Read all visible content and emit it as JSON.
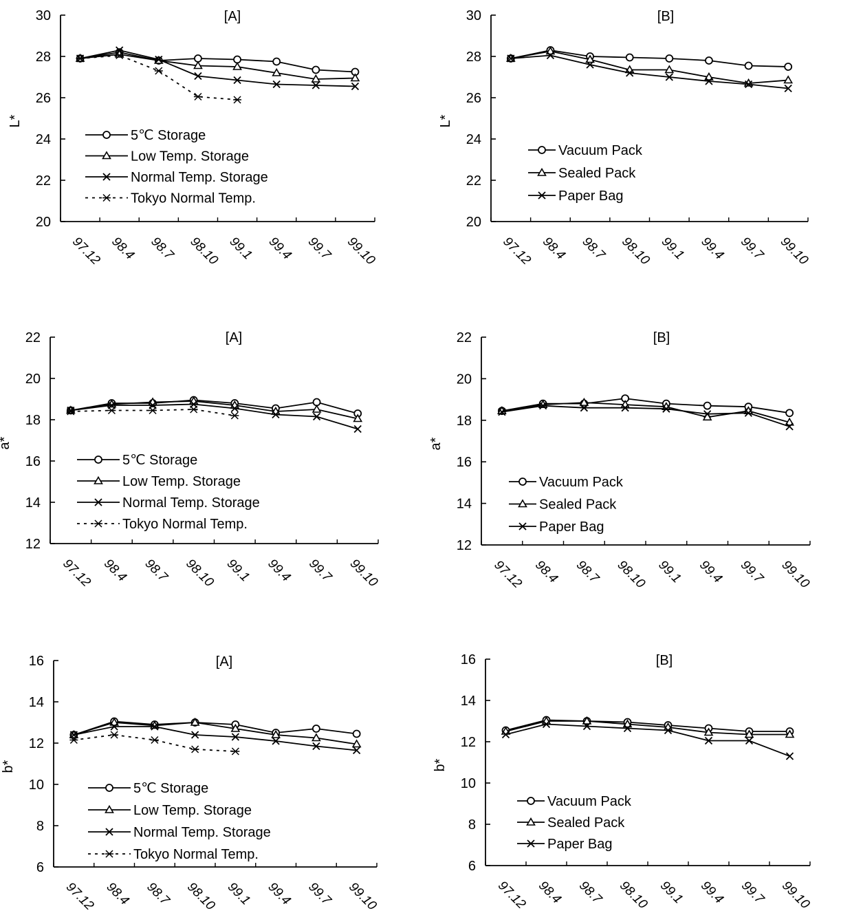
{
  "chart_data": [
    {
      "type": "line",
      "title": "[A]",
      "ylabel": "L*",
      "ylim": [
        20,
        30
      ],
      "yticks": [
        20,
        22,
        24,
        26,
        28,
        30
      ],
      "categories": [
        "97.12",
        "98.4",
        "98.7",
        "98.10",
        "99.1",
        "99.4",
        "99.7",
        "99.10"
      ],
      "legend": "bottom-left",
      "series": [
        {
          "name": "5℃ Storage",
          "marker": "circle",
          "dash": false,
          "values": [
            27.9,
            28.2,
            27.8,
            27.9,
            27.85,
            27.75,
            27.35,
            27.25
          ]
        },
        {
          "name": "Low Temp. Storage",
          "marker": "triangle",
          "dash": false,
          "values": [
            27.9,
            28.1,
            27.8,
            27.55,
            27.5,
            27.2,
            26.9,
            26.95
          ]
        },
        {
          "name": "Normal Temp. Storage",
          "marker": "x",
          "dash": false,
          "values": [
            27.9,
            28.3,
            27.85,
            27.05,
            26.85,
            26.65,
            26.6,
            26.55
          ]
        },
        {
          "name": "Tokyo Normal Temp.",
          "marker": "star",
          "dash": true,
          "values": [
            27.9,
            28.05,
            27.3,
            26.05,
            25.9,
            null,
            null,
            null
          ]
        }
      ]
    },
    {
      "type": "line",
      "title": "[B]",
      "ylabel": "L*",
      "ylim": [
        20,
        30
      ],
      "yticks": [
        20,
        22,
        24,
        26,
        28,
        30
      ],
      "categories": [
        "97.12",
        "98.4",
        "98.7",
        "98.10",
        "99.1",
        "99.4",
        "99.7",
        "99.10"
      ],
      "legend": "bottom-left",
      "series": [
        {
          "name": "Vacuum Pack",
          "marker": "circle",
          "dash": false,
          "values": [
            27.9,
            28.3,
            28.0,
            27.95,
            27.9,
            27.8,
            27.55,
            27.5
          ]
        },
        {
          "name": "Sealed Pack",
          "marker": "triangle",
          "dash": false,
          "values": [
            27.9,
            28.25,
            27.85,
            27.35,
            27.35,
            27.0,
            26.7,
            26.85
          ]
        },
        {
          "name": "Paper Bag",
          "marker": "x",
          "dash": false,
          "values": [
            27.9,
            28.05,
            27.6,
            27.2,
            27.0,
            26.8,
            26.65,
            26.45
          ]
        }
      ]
    },
    {
      "type": "line",
      "title": "[A]",
      "ylabel": "a*",
      "ylim": [
        12,
        22
      ],
      "yticks": [
        12,
        14,
        16,
        18,
        20,
        22
      ],
      "categories": [
        "97.12",
        "98.4",
        "98.7",
        "98.10",
        "99.1",
        "99.4",
        "99.7",
        "99.10"
      ],
      "legend": "bottom-left",
      "series": [
        {
          "name": "5℃ Storage",
          "marker": "circle",
          "dash": false,
          "values": [
            18.45,
            18.8,
            18.8,
            18.95,
            18.8,
            18.55,
            18.85,
            18.3
          ]
        },
        {
          "name": "Low Temp. Storage",
          "marker": "triangle",
          "dash": false,
          "values": [
            18.45,
            18.75,
            18.85,
            18.9,
            18.7,
            18.4,
            18.5,
            18.05
          ]
        },
        {
          "name": "Normal Temp. Storage",
          "marker": "x",
          "dash": false,
          "values": [
            18.45,
            18.7,
            18.7,
            18.75,
            18.55,
            18.25,
            18.15,
            17.55
          ]
        },
        {
          "name": "Tokyo Normal Temp.",
          "marker": "star",
          "dash": true,
          "values": [
            18.4,
            18.45,
            18.45,
            18.5,
            18.2,
            null,
            null,
            null
          ]
        }
      ]
    },
    {
      "type": "line",
      "title": "[B]",
      "ylabel": "a*",
      "ylim": [
        12,
        22
      ],
      "yticks": [
        12,
        14,
        16,
        18,
        20,
        22
      ],
      "categories": [
        "97.12",
        "98.4",
        "98.7",
        "98.10",
        "99.1",
        "99.4",
        "99.7",
        "99.10"
      ],
      "legend": "bottom-left",
      "series": [
        {
          "name": "Vacuum Pack",
          "marker": "circle",
          "dash": false,
          "values": [
            18.45,
            18.8,
            18.8,
            19.05,
            18.8,
            18.7,
            18.65,
            18.35
          ]
        },
        {
          "name": "Sealed Pack",
          "marker": "triangle",
          "dash": false,
          "values": [
            18.45,
            18.75,
            18.85,
            18.75,
            18.65,
            18.15,
            18.45,
            17.9
          ]
        },
        {
          "name": "Paper Bag",
          "marker": "x",
          "dash": false,
          "values": [
            18.4,
            18.7,
            18.6,
            18.6,
            18.55,
            18.3,
            18.35,
            17.7
          ]
        }
      ]
    },
    {
      "type": "line",
      "title": "[A]",
      "ylabel": "b*",
      "ylim": [
        6,
        16
      ],
      "yticks": [
        6,
        8,
        10,
        12,
        14,
        16
      ],
      "categories": [
        "97.12",
        "98.4",
        "98.7",
        "98.10",
        "99.1",
        "99.4",
        "99.7",
        "99.10"
      ],
      "legend": "bottom-left",
      "series": [
        {
          "name": "5℃ Storage",
          "marker": "circle",
          "dash": false,
          "values": [
            12.4,
            13.05,
            12.9,
            13.0,
            12.9,
            12.5,
            12.7,
            12.45
          ]
        },
        {
          "name": "Low Temp. Storage",
          "marker": "triangle",
          "dash": false,
          "values": [
            12.4,
            13.0,
            12.85,
            13.0,
            12.7,
            12.4,
            12.25,
            11.95
          ]
        },
        {
          "name": "Normal Temp. Storage",
          "marker": "x",
          "dash": false,
          "values": [
            12.4,
            12.8,
            12.8,
            12.4,
            12.3,
            12.1,
            11.85,
            11.65
          ]
        },
        {
          "name": "Tokyo Normal Temp.",
          "marker": "star",
          "dash": true,
          "values": [
            12.15,
            12.4,
            12.15,
            11.7,
            11.6,
            null,
            null,
            null
          ]
        }
      ]
    },
    {
      "type": "line",
      "title": "[B]",
      "ylabel": "b*",
      "ylim": [
        6,
        16
      ],
      "yticks": [
        6,
        8,
        10,
        12,
        14,
        16
      ],
      "categories": [
        "97.12",
        "98.4",
        "98.7",
        "98.10",
        "99.1",
        "99.4",
        "99.7",
        "99.10"
      ],
      "legend": "bottom-left",
      "series": [
        {
          "name": "Vacuum Pack",
          "marker": "circle",
          "dash": false,
          "values": [
            12.55,
            13.05,
            13.0,
            12.95,
            12.8,
            12.65,
            12.5,
            12.5
          ]
        },
        {
          "name": "Sealed Pack",
          "marker": "triangle",
          "dash": false,
          "values": [
            12.5,
            13.0,
            13.0,
            12.85,
            12.7,
            12.45,
            12.35,
            12.35
          ]
        },
        {
          "name": "Paper Bag",
          "marker": "x",
          "dash": false,
          "values": [
            12.35,
            12.85,
            12.75,
            12.65,
            12.55,
            12.05,
            12.05,
            11.3
          ]
        }
      ]
    }
  ]
}
